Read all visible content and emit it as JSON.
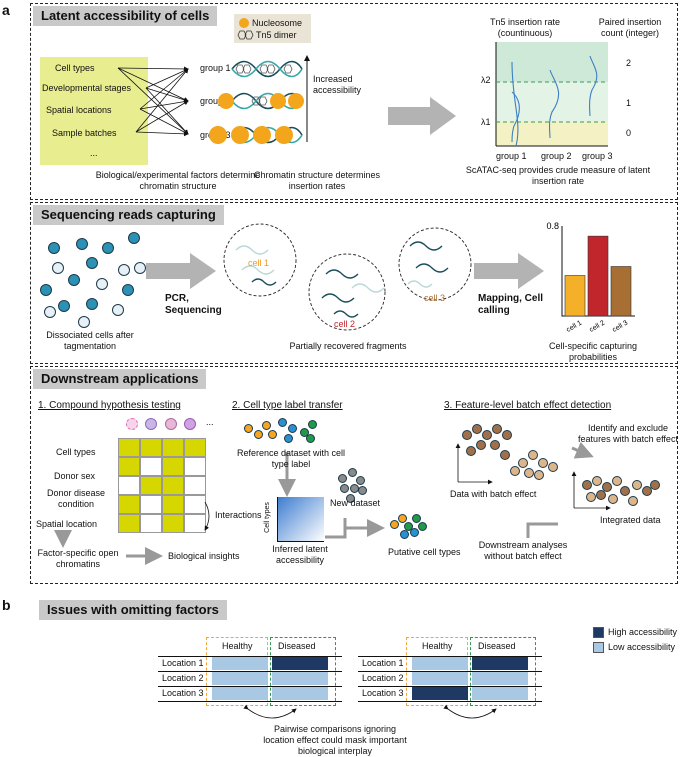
{
  "panel_a": {
    "letter": "a",
    "section1": {
      "title": "Latent accessibility of cells",
      "factors": [
        "Cell types",
        "Developmental stages",
        "Spatial locations",
        "Sample batches",
        "..."
      ],
      "groups": [
        "group 1",
        "group 2",
        "group 3"
      ],
      "legend": {
        "nucleosome": "Nucleosome",
        "tn5": "Tn5 dimer"
      },
      "increased": "Increased accessibility",
      "caption_left": "Biological/experimental factors determine chromatin structure",
      "caption_mid": "Chromatin structure determines insertion rates",
      "rate_title": "Tn5 insertion rate (countinuous)",
      "count_title": "Paired insertion count (integer)",
      "lambda2": "λ2",
      "lambda1": "λ1",
      "count_ticks": [
        "2",
        "1",
        "0"
      ],
      "plot_groups": [
        "group 1",
        "group 2",
        "group 3"
      ],
      "caption_right": "ScATAC-seq provides crude measure of latent insertion rate"
    },
    "section2": {
      "title": "Sequencing reads capturing",
      "arrow1": "PCR, Sequencing",
      "arrow2": "Mapping, Cell calling",
      "cells": [
        "cell 1",
        "cell 2",
        "cell 3"
      ],
      "caption_left": "Dissociated cells after tagmentation",
      "caption_mid": "Partially recovered fragments",
      "caption_right": "Cell-specific capturing probabilities"
    },
    "section3": {
      "title": "Downstream applications",
      "sub1": "1. Compound hypothesis testing",
      "rows": [
        "Cell types",
        "Donor sex",
        "Donor disease condition",
        "Spatial location"
      ],
      "ellipsis": "...",
      "interactions": "Interactions",
      "factor_specific": "Factor-specific open chromatins",
      "bio": "Biological insights",
      "sub2": "2. Cell type label transfer",
      "reference": "Reference dataset with cell type label",
      "new_dataset": "New dataset",
      "cell_types_axis": "Cell types",
      "inferred": "Inferred latent accessibility",
      "putative": "Putative cell types",
      "sub3": "3. Feature-level batch effect detection",
      "identify": "Identify and exclude features with batch effect",
      "with_batch": "Data with batch effect",
      "integrated": "Integrated data",
      "downstream": "Downstream analyses without batch effect"
    },
    "grid_pattern": [
      [
        1,
        1,
        1,
        1
      ],
      [
        1,
        0,
        1,
        0
      ],
      [
        0,
        1,
        1,
        0
      ],
      [
        1,
        0,
        1,
        0
      ],
      [
        1,
        0,
        1,
        0
      ]
    ],
    "colors": {
      "grid_on": "#d6d600",
      "grid_off": "#ffffff",
      "yellow": "#e8ed8f",
      "nucleosome": "#f3a51c",
      "accent_green": "#a6dcb8"
    }
  },
  "panel_b": {
    "letter": "b",
    "title": "Issues with omitting factors",
    "healthy": "Healthy",
    "diseased": "Diseased",
    "locations": [
      "Location 1",
      "Location 2",
      "Location 3"
    ],
    "legend_high": "High accessibility",
    "legend_low": "Low accessibility",
    "caption": "Pairwise comparisons ignoring location effect could mask important biological interplay",
    "colors": {
      "high": "#1e3a64",
      "low": "#a9c8e4"
    }
  },
  "chart_data": {
    "type": "bar",
    "categories": [
      "cell 1",
      "cell 2",
      "cell 3"
    ],
    "values": [
      0.36,
      0.71,
      0.44
    ],
    "colors": [
      "#f5b02a",
      "#c0262b",
      "#a86f35"
    ],
    "ylim": [
      0,
      0.8
    ],
    "yticks": [
      "0.8"
    ]
  }
}
